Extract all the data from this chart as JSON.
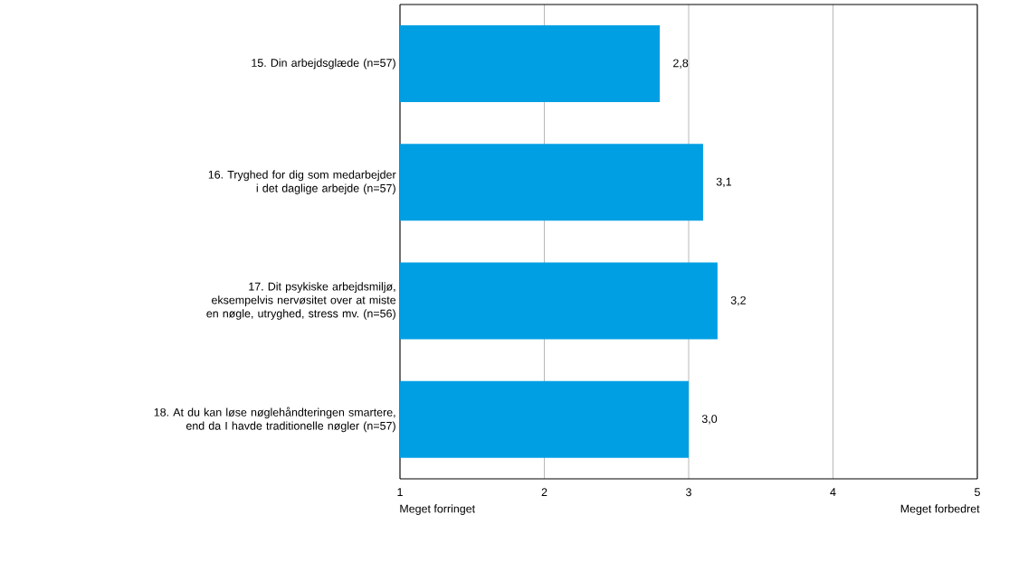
{
  "chart_data": {
    "type": "bar",
    "orientation": "horizontal",
    "categories": [
      "15. Din arbejdsglæde (n=57)",
      "16. Tryghed for dig som medarbejder i det daglige arbejde (n=57)",
      "17. Dit psykiske arbejdsmiljø, eksempelvis nervøsitet over at miste en nøgle, utryghed, stress mv. (n=56)",
      "18. At du kan løse nøglehåndteringen smartere, end da I havde traditionelle nøgler (n=57)"
    ],
    "values": [
      2.8,
      3.1,
      3.2,
      3.0
    ],
    "value_labels": [
      "2,8",
      "3,1",
      "3,2",
      "3,0"
    ],
    "color": "#009fe3",
    "xlim": [
      1,
      5
    ],
    "xticks": [
      1,
      2,
      3,
      4,
      5
    ],
    "grid": "x",
    "annotations": [
      "Meget forringet",
      "Meget forbedret"
    ]
  }
}
